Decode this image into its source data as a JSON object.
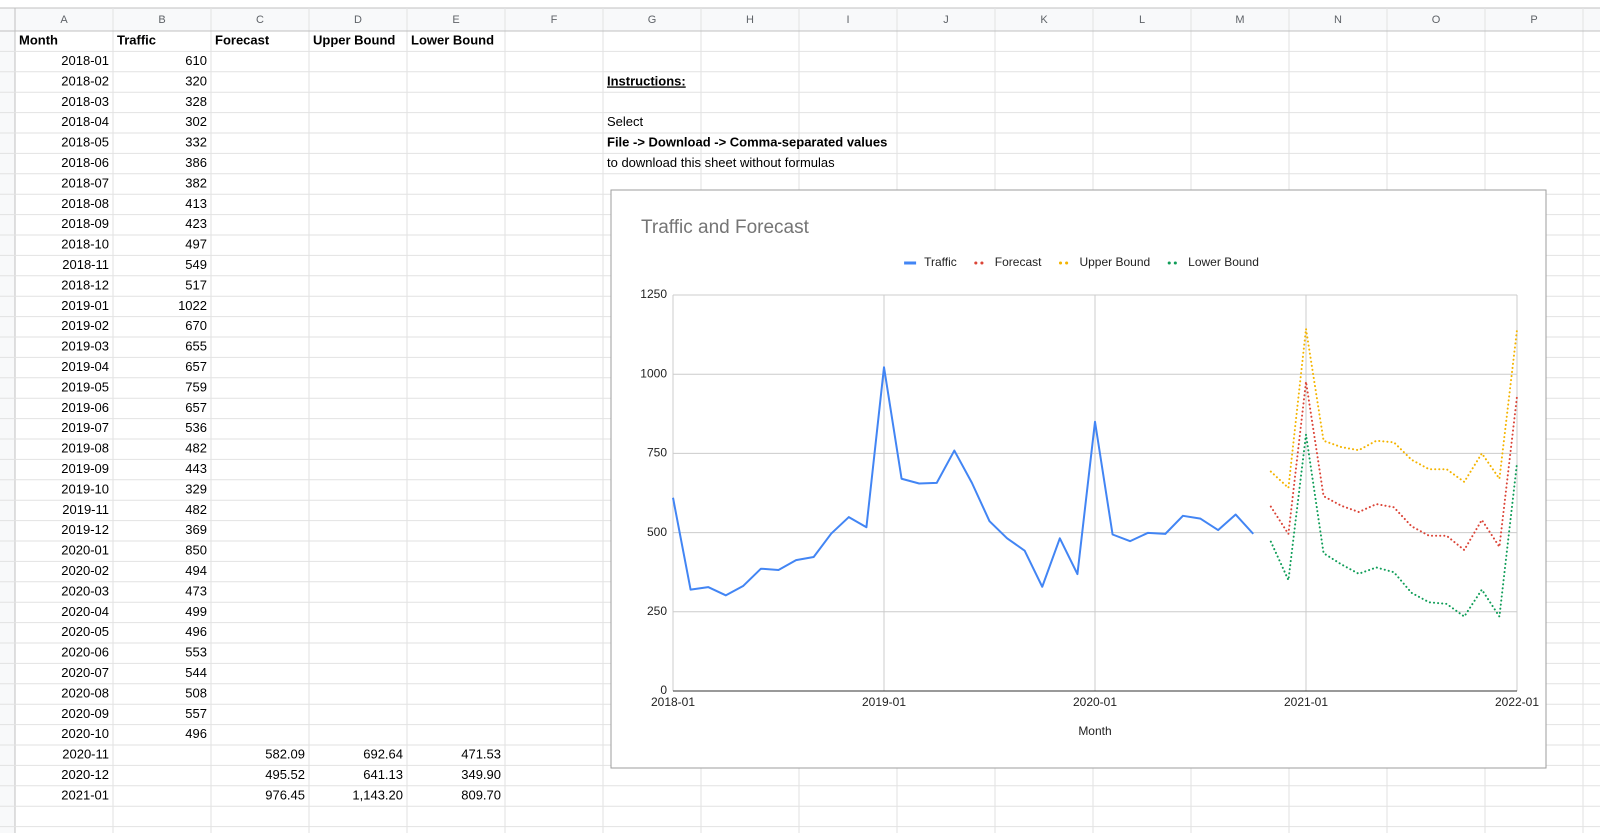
{
  "sheet": {
    "columns": [
      "A",
      "B",
      "C",
      "D",
      "E",
      "F",
      "G",
      "H",
      "I",
      "J",
      "K",
      "L",
      "M",
      "N",
      "O",
      "P"
    ],
    "header": [
      "Month",
      "Traffic",
      "Forecast",
      "Upper Bound",
      "Lower Bound"
    ],
    "rows": [
      [
        "2018-01",
        "610"
      ],
      [
        "2018-02",
        "320"
      ],
      [
        "2018-03",
        "328"
      ],
      [
        "2018-04",
        "302"
      ],
      [
        "2018-05",
        "332"
      ],
      [
        "2018-06",
        "386"
      ],
      [
        "2018-07",
        "382"
      ],
      [
        "2018-08",
        "413"
      ],
      [
        "2018-09",
        "423"
      ],
      [
        "2018-10",
        "497"
      ],
      [
        "2018-11",
        "549"
      ],
      [
        "2018-12",
        "517"
      ],
      [
        "2019-01",
        "1022"
      ],
      [
        "2019-02",
        "670"
      ],
      [
        "2019-03",
        "655"
      ],
      [
        "2019-04",
        "657"
      ],
      [
        "2019-05",
        "759"
      ],
      [
        "2019-06",
        "657"
      ],
      [
        "2019-07",
        "536"
      ],
      [
        "2019-08",
        "482"
      ],
      [
        "2019-09",
        "443"
      ],
      [
        "2019-10",
        "329"
      ],
      [
        "2019-11",
        "482"
      ],
      [
        "2019-12",
        "369"
      ],
      [
        "2020-01",
        "850"
      ],
      [
        "2020-02",
        "494"
      ],
      [
        "2020-03",
        "473"
      ],
      [
        "2020-04",
        "499"
      ],
      [
        "2020-05",
        "496"
      ],
      [
        "2020-06",
        "553"
      ],
      [
        "2020-07",
        "544"
      ],
      [
        "2020-08",
        "508"
      ],
      [
        "2020-09",
        "557"
      ],
      [
        "2020-10",
        "496"
      ],
      [
        "2020-11",
        null,
        "582.09",
        "692.64",
        "471.53"
      ],
      [
        "2020-12",
        null,
        "495.52",
        "641.13",
        "349.90"
      ],
      [
        "2021-01",
        null,
        "976.45",
        "1,143.20",
        "809.70"
      ]
    ],
    "instructions": {
      "title": "Instructions:",
      "line1": "Select",
      "line2": "File -> Download -> Comma-separated values",
      "line3": "to download this sheet without formulas"
    }
  },
  "chart_data": {
    "type": "line",
    "title": "Traffic and Forecast",
    "x_label": "Month",
    "x": [
      "2018-01",
      "2018-02",
      "2018-03",
      "2018-04",
      "2018-05",
      "2018-06",
      "2018-07",
      "2018-08",
      "2018-09",
      "2018-10",
      "2018-11",
      "2018-12",
      "2019-01",
      "2019-02",
      "2019-03",
      "2019-04",
      "2019-05",
      "2019-06",
      "2019-07",
      "2019-08",
      "2019-09",
      "2019-10",
      "2019-11",
      "2019-12",
      "2020-01",
      "2020-02",
      "2020-03",
      "2020-04",
      "2020-05",
      "2020-06",
      "2020-07",
      "2020-08",
      "2020-09",
      "2020-10",
      "2020-11",
      "2020-12",
      "2021-01",
      "2021-02",
      "2021-03",
      "2021-04",
      "2021-05",
      "2021-06",
      "2021-07",
      "2021-08",
      "2021-09",
      "2021-10",
      "2021-11",
      "2021-12",
      "2022-01"
    ],
    "xticks": [
      "2018-01",
      "2019-01",
      "2020-01",
      "2021-01",
      "2022-01"
    ],
    "ylim": [
      0,
      1250
    ],
    "yticks": [
      0,
      250,
      500,
      750,
      1000,
      1250
    ],
    "grid": true,
    "legend": "top",
    "series": [
      {
        "name": "Traffic",
        "color": "#4285f4",
        "style": "solid",
        "values": [
          610,
          320,
          328,
          302,
          332,
          386,
          382,
          413,
          423,
          497,
          549,
          517,
          1022,
          670,
          655,
          657,
          759,
          657,
          536,
          482,
          443,
          329,
          482,
          369,
          850,
          494,
          473,
          499,
          496,
          553,
          544,
          508,
          557,
          496,
          null,
          null,
          null,
          null,
          null,
          null,
          null,
          null,
          null,
          null,
          null,
          null,
          null,
          null,
          null
        ]
      },
      {
        "name": "Forecast",
        "color": "#db4437",
        "style": "dotted",
        "values": [
          null,
          null,
          null,
          null,
          null,
          null,
          null,
          null,
          null,
          null,
          null,
          null,
          null,
          null,
          null,
          null,
          null,
          null,
          null,
          null,
          null,
          null,
          null,
          null,
          null,
          null,
          null,
          null,
          null,
          null,
          null,
          null,
          null,
          null,
          582.09,
          495.52,
          976.45,
          615,
          585,
          565,
          590,
          580,
          520,
          490,
          490,
          445,
          540,
          455,
          930
        ]
      },
      {
        "name": "Upper Bound",
        "color": "#f4b400",
        "style": "dotted",
        "values": [
          null,
          null,
          null,
          null,
          null,
          null,
          null,
          null,
          null,
          null,
          null,
          null,
          null,
          null,
          null,
          null,
          null,
          null,
          null,
          null,
          null,
          null,
          null,
          null,
          null,
          null,
          null,
          null,
          null,
          null,
          null,
          null,
          null,
          null,
          692.64,
          641.13,
          1143.2,
          790,
          770,
          760,
          790,
          785,
          730,
          700,
          700,
          660,
          750,
          670,
          1140
        ]
      },
      {
        "name": "Lower Bound",
        "color": "#0f9d58",
        "style": "dotted",
        "values": [
          null,
          null,
          null,
          null,
          null,
          null,
          null,
          null,
          null,
          null,
          null,
          null,
          null,
          null,
          null,
          null,
          null,
          null,
          null,
          null,
          null,
          null,
          null,
          null,
          null,
          null,
          null,
          null,
          null,
          null,
          null,
          null,
          null,
          null,
          471.53,
          349.9,
          809.7,
          435,
          400,
          370,
          390,
          375,
          310,
          280,
          275,
          235,
          320,
          235,
          720
        ]
      }
    ]
  }
}
